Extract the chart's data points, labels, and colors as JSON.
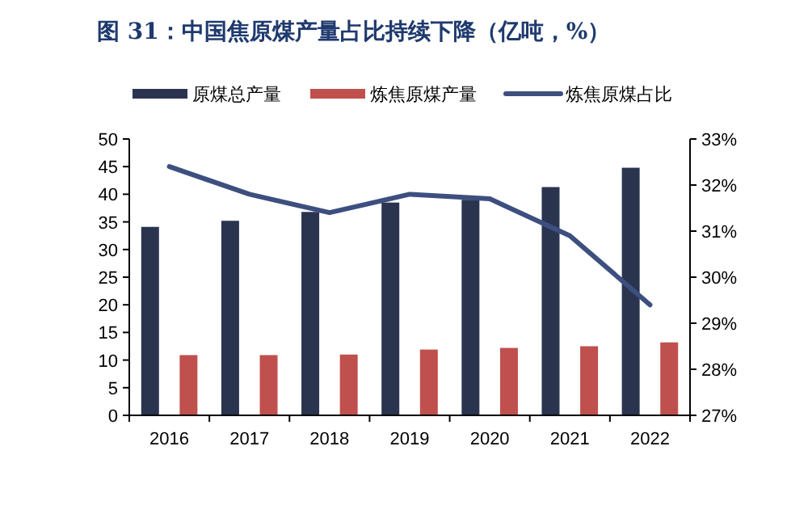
{
  "chart_data": {
    "type": "bar",
    "title": "图 31：中国焦原煤产量占比持续下降（亿吨，%）",
    "categories": [
      "2016",
      "2017",
      "2018",
      "2019",
      "2020",
      "2021",
      "2022"
    ],
    "series": [
      {
        "name": "原煤总产量",
        "color": "#2b344f",
        "values": [
          34.1,
          35.2,
          36.8,
          38.5,
          39.0,
          41.3,
          44.8
        ]
      },
      {
        "name": "炼焦原煤产量",
        "color": "#c0504d",
        "values": [
          10.9,
          10.9,
          11.0,
          11.9,
          12.2,
          12.5,
          13.2
        ]
      },
      {
        "name": "炼焦原煤占比",
        "type": "line",
        "axis": "y2",
        "color": "#3d4f7f",
        "values": [
          32.4,
          31.8,
          31.4,
          31.8,
          31.7,
          30.9,
          29.4
        ]
      }
    ],
    "ylim": [
      0,
      50
    ],
    "yticks": [
      0,
      5,
      10,
      15,
      20,
      25,
      30,
      35,
      40,
      45,
      50
    ],
    "y2lim": [
      27,
      33
    ],
    "y2ticks": [
      {
        "value": 27,
        "label": "27%"
      },
      {
        "value": 28,
        "label": "28%"
      },
      {
        "value": 29,
        "label": "29%"
      },
      {
        "value": 30,
        "label": "30%"
      },
      {
        "value": 31,
        "label": "31%"
      },
      {
        "value": 32,
        "label": "32%"
      },
      {
        "value": 33,
        "label": "33%"
      }
    ],
    "legend": "top",
    "grid": false,
    "line_style": "solid"
  }
}
